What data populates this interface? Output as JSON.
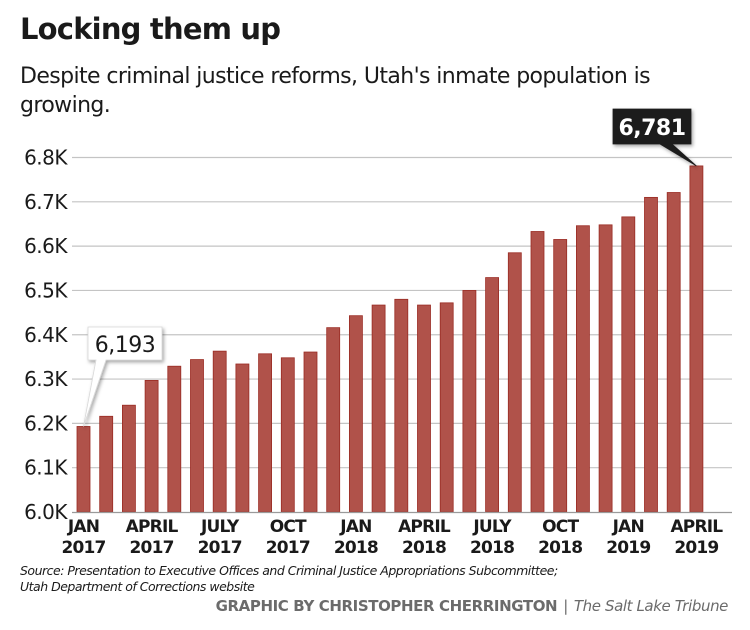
{
  "chart_data": {
    "type": "bar",
    "title": "Locking them up",
    "subtitle": "Despite criminal justice reforms, Utah's inmate population is growing.",
    "xlabel": "",
    "ylabel": "",
    "ylim": [
      6000,
      6800
    ],
    "grid": true,
    "yticks": [
      {
        "value": 6000,
        "label": "6.0K"
      },
      {
        "value": 6100,
        "label": "6.1K"
      },
      {
        "value": 6200,
        "label": "6.2K"
      },
      {
        "value": 6300,
        "label": "6.3K"
      },
      {
        "value": 6400,
        "label": "6.4K"
      },
      {
        "value": 6500,
        "label": "6.5K"
      },
      {
        "value": 6600,
        "label": "6.6K"
      },
      {
        "value": 6700,
        "label": "6.7K"
      },
      {
        "value": 6800,
        "label": "6.8K"
      }
    ],
    "categories": [
      "Jan 2017",
      "Feb 2017",
      "Mar 2017",
      "Apr 2017",
      "May 2017",
      "Jun 2017",
      "Jul 2017",
      "Aug 2017",
      "Sep 2017",
      "Oct 2017",
      "Nov 2017",
      "Dec 2017",
      "Jan 2018",
      "Feb 2018",
      "Mar 2018",
      "Apr 2018",
      "May 2018",
      "Jun 2018",
      "Jul 2018",
      "Aug 2018",
      "Sep 2018",
      "Oct 2018",
      "Nov 2018",
      "Dec 2018",
      "Jan 2019",
      "Feb 2019",
      "Mar 2019",
      "Apr 2019"
    ],
    "values": [
      6193,
      6216,
      6241,
      6297,
      6329,
      6344,
      6363,
      6334,
      6357,
      6348,
      6361,
      6416,
      6443,
      6467,
      6480,
      6467,
      6472,
      6500,
      6529,
      6585,
      6633,
      6615,
      6646,
      6648,
      6666,
      6710,
      6721,
      6781
    ],
    "xtick_labels": [
      {
        "index": 0,
        "line1": "JAN",
        "line2": "2017"
      },
      {
        "index": 3,
        "line1": "APRIL",
        "line2": "2017"
      },
      {
        "index": 6,
        "line1": "JULY",
        "line2": "2017"
      },
      {
        "index": 9,
        "line1": "OCT",
        "line2": "2017"
      },
      {
        "index": 12,
        "line1": "JAN",
        "line2": "2018"
      },
      {
        "index": 15,
        "line1": "APRIL",
        "line2": "2018"
      },
      {
        "index": 18,
        "line1": "JULY",
        "line2": "2018"
      },
      {
        "index": 21,
        "line1": "OCT",
        "line2": "2018"
      },
      {
        "index": 24,
        "line1": "JAN",
        "line2": "2019"
      },
      {
        "index": 27,
        "line1": "APRIL",
        "line2": "2019"
      }
    ],
    "annotations": [
      {
        "index": 0,
        "text": "6,193",
        "style": "white"
      },
      {
        "index": 27,
        "text": "6,781",
        "style": "black"
      }
    ],
    "colors": {
      "bar_fill": "#B0524A",
      "bar_edge": "#9A2B23",
      "grid": "#c4c4c4",
      "axis": "#9a9a9a"
    }
  },
  "footer": {
    "source_line1": "Source: Presentation to Executive Offices and Criminal Justice Appropriations Subcommittee;",
    "source_line2": "Utah Department of Corrections website",
    "credit_by": "GRAPHIC BY CHRISTOPHER CHERRINGTON",
    "credit_sep": "|",
    "credit_pub": "The Salt Lake Tribune"
  }
}
